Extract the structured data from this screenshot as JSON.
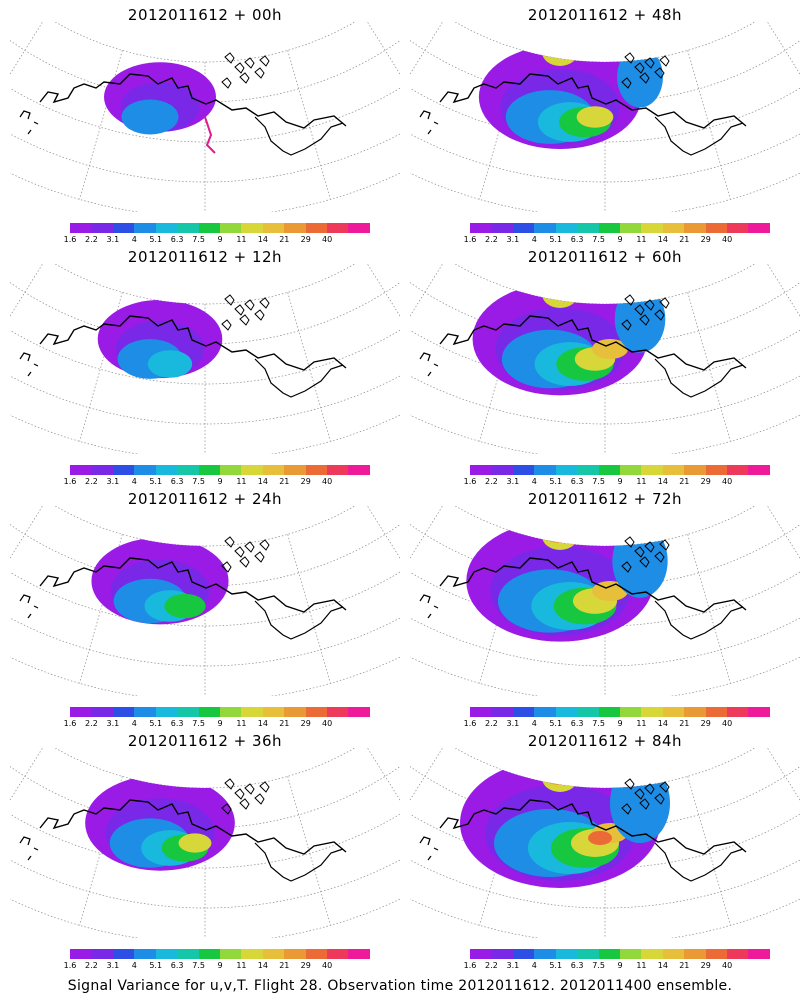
{
  "panels": [
    {
      "title": "2012011612 + 00h",
      "lead": 0
    },
    {
      "title": "2012011612 + 48h",
      "lead": 48
    },
    {
      "title": "2012011612 + 12h",
      "lead": 12
    },
    {
      "title": "2012011612 + 60h",
      "lead": 60
    },
    {
      "title": "2012011612 + 24h",
      "lead": 24
    },
    {
      "title": "2012011612 + 72h",
      "lead": 72
    },
    {
      "title": "2012011612 + 36h",
      "lead": 36
    },
    {
      "title": "2012011612 + 84h",
      "lead": 84
    }
  ],
  "colorbar": {
    "labels": [
      "1.6",
      "2.2",
      "3.1",
      "4",
      "5.1",
      "6.3",
      "7.5",
      "9",
      "11",
      "14",
      "21",
      "29",
      "40"
    ],
    "colors": [
      "#9b1be6",
      "#7a28e8",
      "#2e4fe6",
      "#1e8de6",
      "#19b9de",
      "#15c7a8",
      "#17c740",
      "#93d83a",
      "#d7d73a",
      "#e7bf3b",
      "#e99a34",
      "#ec6a36",
      "#ee3a5a",
      "#ee1a9a"
    ]
  },
  "colors": {
    "land_outline": "#000000",
    "grid": "#8a8a8a",
    "accent_trace": "#e01a8a"
  },
  "caption": "Signal Variance for u,v,T. Flight 28. Observation time 2012011612. 2012011400 ensemble."
}
